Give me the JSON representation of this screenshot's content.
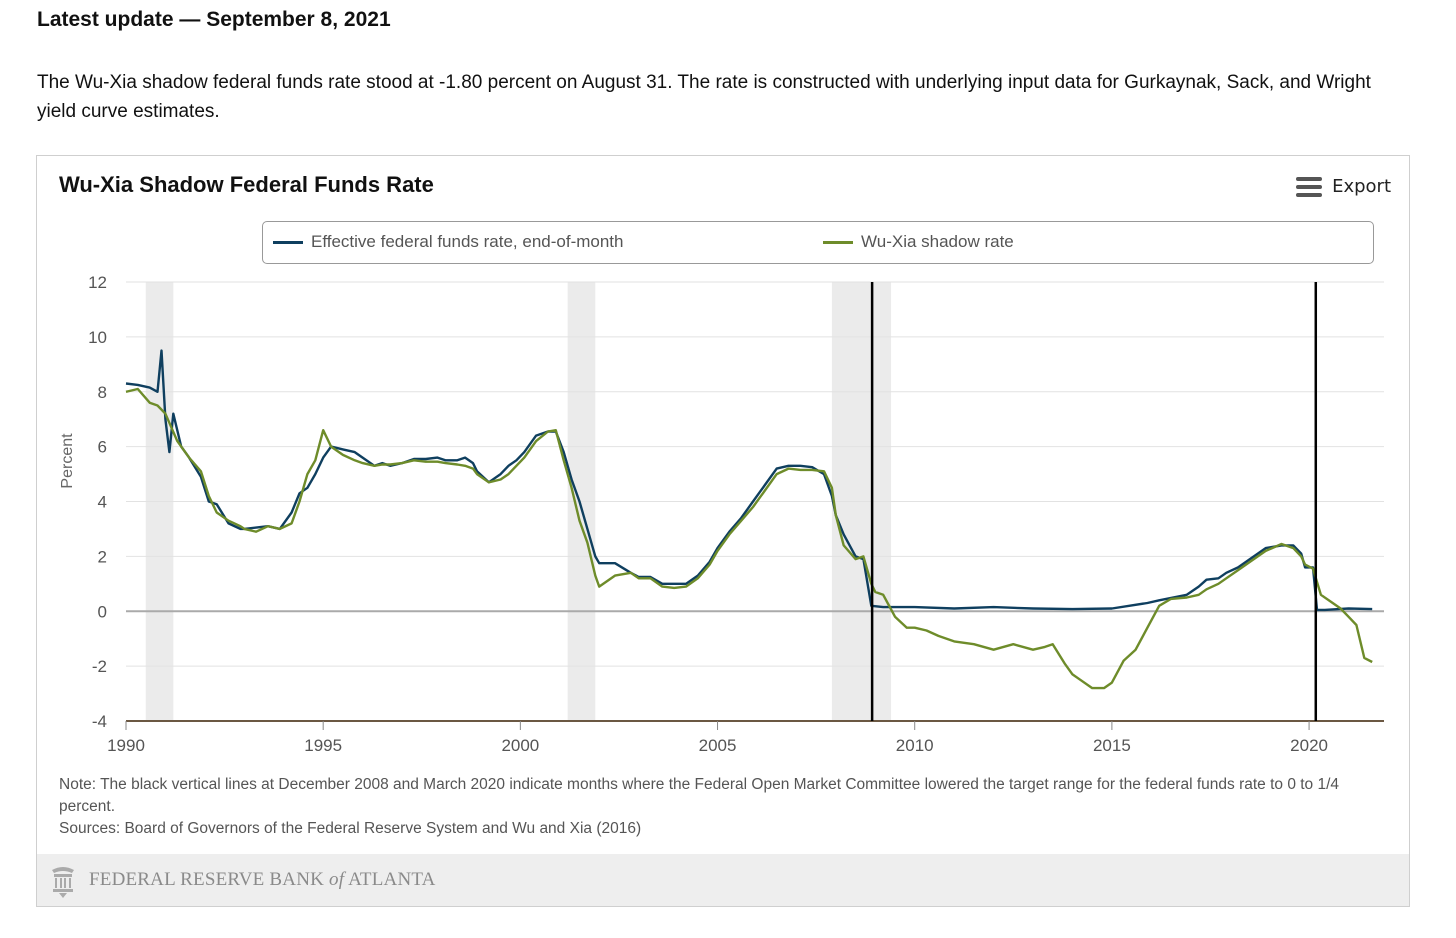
{
  "page": {
    "headline": "Latest update — September 8, 2021",
    "intro": "The Wu-Xia shadow federal funds rate stood at -1.80 percent on August 31. The rate is constructed with underlying input data for Gurkaynak, Sack, and Wright yield curve estimates."
  },
  "card": {
    "export_label": "Export",
    "note": "Note: The black vertical lines at December 2008 and March 2020 indicate months where the Federal Open Market Committee lowered the target range for the federal funds rate to 0 to 1/4 percent.",
    "sources": "Sources: Board of Governors of the Federal Reserve System and Wu and Xia (2016)",
    "footer_prefix": "FEDERAL RESERVE BANK ",
    "footer_of": "of",
    "footer_suffix": " ATLANTA",
    "icons": {
      "menu": "hamburger-menu-icon",
      "seal": "fed-seal-logo"
    }
  },
  "colors": {
    "effr": "#0f3f5f",
    "shadow": "#6e8c2a",
    "recession": "#ebebeb",
    "fomc_line": "#000000",
    "axis": "#6b5843"
  },
  "chart_data": {
    "type": "line",
    "title": "Wu-Xia Shadow Federal Funds Rate",
    "ylabel": "Percent",
    "xlabel": "",
    "xlim": [
      1990,
      2021.9
    ],
    "ylim": [
      -4,
      12
    ],
    "x_ticks": [
      1990,
      1995,
      2000,
      2005,
      2010,
      2015,
      2020
    ],
    "y_ticks": [
      -4,
      -2,
      0,
      2,
      4,
      6,
      8,
      10,
      12
    ],
    "x_tick_labels": [
      "1990",
      "1995",
      "2000",
      "2005",
      "2010",
      "2015",
      "2020"
    ],
    "y_tick_labels": [
      "-4",
      "-2",
      "0",
      "2",
      "4",
      "6",
      "8",
      "10",
      "12"
    ],
    "grid": true,
    "legend": "top",
    "recession_bands": [
      [
        1990.5,
        1991.2
      ],
      [
        2001.2,
        2001.9
      ],
      [
        2007.9,
        2009.4
      ]
    ],
    "vertical_lines": [
      2008.92,
      2020.17
    ],
    "series": [
      {
        "name": "Effective federal funds rate, end-of-month",
        "x": [
          1990.0,
          1990.3,
          1990.6,
          1990.8,
          1990.9,
          1991.0,
          1991.1,
          1991.2,
          1991.4,
          1991.6,
          1991.9,
          1992.1,
          1992.3,
          1992.6,
          1992.9,
          1993.0,
          1993.3,
          1993.6,
          1993.9,
          1994.2,
          1994.4,
          1994.6,
          1994.8,
          1995.0,
          1995.2,
          1995.5,
          1995.8,
          1996.0,
          1996.3,
          1996.5,
          1996.7,
          1997.0,
          1997.3,
          1997.6,
          1997.9,
          1998.1,
          1998.4,
          1998.6,
          1998.8,
          1998.9,
          1999.2,
          1999.5,
          1999.7,
          1999.9,
          2000.1,
          2000.4,
          2000.7,
          2000.9,
          2001.1,
          2001.3,
          2001.5,
          2001.7,
          2001.9,
          2002.0,
          2002.4,
          2002.8,
          2003.0,
          2003.3,
          2003.6,
          2003.9,
          2004.2,
          2004.5,
          2004.8,
          2005.0,
          2005.3,
          2005.6,
          2005.9,
          2006.2,
          2006.5,
          2006.8,
          2007.1,
          2007.4,
          2007.7,
          2007.9,
          2008.0,
          2008.2,
          2008.5,
          2008.7,
          2008.9,
          2009.2,
          2009.5,
          2010.0,
          2011.0,
          2012.0,
          2013.0,
          2014.0,
          2015.0,
          2015.9,
          2016.2,
          2016.9,
          2017.2,
          2017.4,
          2017.7,
          2017.9,
          2018.2,
          2018.5,
          2018.7,
          2018.9,
          2019.3,
          2019.6,
          2019.8,
          2019.9,
          2020.1,
          2020.2,
          2020.4,
          2021.0,
          2021.6
        ],
        "values": [
          8.3,
          8.25,
          8.15,
          8.0,
          9.5,
          7.0,
          5.8,
          7.2,
          6.0,
          5.6,
          4.9,
          4.0,
          3.9,
          3.2,
          3.0,
          3.0,
          3.05,
          3.1,
          3.0,
          3.6,
          4.3,
          4.5,
          5.0,
          5.6,
          6.0,
          5.9,
          5.8,
          5.6,
          5.3,
          5.4,
          5.3,
          5.4,
          5.55,
          5.55,
          5.6,
          5.5,
          5.5,
          5.6,
          5.4,
          5.1,
          4.7,
          5.0,
          5.3,
          5.5,
          5.8,
          6.4,
          6.55,
          6.55,
          5.8,
          4.8,
          4.0,
          3.0,
          2.0,
          1.75,
          1.75,
          1.4,
          1.25,
          1.25,
          1.0,
          1.0,
          1.0,
          1.3,
          1.8,
          2.3,
          2.9,
          3.4,
          4.0,
          4.6,
          5.2,
          5.3,
          5.3,
          5.25,
          5.0,
          4.2,
          3.5,
          2.8,
          2.0,
          1.9,
          0.2,
          0.15,
          0.15,
          0.15,
          0.1,
          0.15,
          0.1,
          0.08,
          0.1,
          0.3,
          0.4,
          0.6,
          0.9,
          1.15,
          1.2,
          1.4,
          1.6,
          1.9,
          2.1,
          2.3,
          2.4,
          2.4,
          2.1,
          1.6,
          1.6,
          0.05,
          0.05,
          0.1,
          0.08
        ]
      },
      {
        "name": "Wu-Xia shadow rate",
        "x": [
          1990.0,
          1990.3,
          1990.6,
          1990.8,
          1991.0,
          1991.3,
          1991.6,
          1991.9,
          1992.1,
          1992.3,
          1992.6,
          1992.9,
          1993.0,
          1993.3,
          1993.6,
          1993.9,
          1994.2,
          1994.4,
          1994.6,
          1994.8,
          1995.0,
          1995.2,
          1995.5,
          1995.8,
          1996.0,
          1996.3,
          1996.5,
          1996.7,
          1997.0,
          1997.3,
          1997.6,
          1997.9,
          1998.1,
          1998.4,
          1998.6,
          1998.8,
          1998.9,
          1999.2,
          1999.5,
          1999.7,
          1999.9,
          2000.1,
          2000.4,
          2000.7,
          2000.9,
          2001.1,
          2001.3,
          2001.5,
          2001.7,
          2001.9,
          2002.0,
          2002.4,
          2002.8,
          2003.0,
          2003.3,
          2003.6,
          2003.9,
          2004.2,
          2004.5,
          2004.8,
          2005.0,
          2005.3,
          2005.6,
          2005.9,
          2006.2,
          2006.5,
          2006.8,
          2007.1,
          2007.4,
          2007.7,
          2007.9,
          2008.0,
          2008.2,
          2008.5,
          2008.7,
          2008.9,
          2009.0,
          2009.2,
          2009.5,
          2009.8,
          2010.0,
          2010.3,
          2010.6,
          2011.0,
          2011.5,
          2012.0,
          2012.5,
          2013.0,
          2013.3,
          2013.5,
          2013.8,
          2014.0,
          2014.2,
          2014.5,
          2014.8,
          2015.0,
          2015.3,
          2015.6,
          2015.9,
          2016.2,
          2016.5,
          2016.9,
          2017.2,
          2017.4,
          2017.7,
          2017.9,
          2018.2,
          2018.5,
          2018.7,
          2018.9,
          2019.3,
          2019.6,
          2019.8,
          2019.9,
          2020.1,
          2020.3,
          2020.6,
          2020.8,
          2021.0,
          2021.2,
          2021.4,
          2021.6
        ],
        "values": [
          8.0,
          8.1,
          7.6,
          7.5,
          7.2,
          6.2,
          5.6,
          5.1,
          4.2,
          3.6,
          3.3,
          3.1,
          3.0,
          2.9,
          3.1,
          3.0,
          3.2,
          4.0,
          5.0,
          5.5,
          6.6,
          6.0,
          5.7,
          5.5,
          5.4,
          5.3,
          5.35,
          5.35,
          5.4,
          5.5,
          5.45,
          5.45,
          5.4,
          5.35,
          5.3,
          5.2,
          5.0,
          4.7,
          4.8,
          5.0,
          5.3,
          5.6,
          6.2,
          6.55,
          6.6,
          5.5,
          4.5,
          3.3,
          2.5,
          1.3,
          0.9,
          1.3,
          1.4,
          1.2,
          1.2,
          0.9,
          0.85,
          0.9,
          1.2,
          1.7,
          2.2,
          2.8,
          3.3,
          3.8,
          4.4,
          5.0,
          5.2,
          5.15,
          5.15,
          5.1,
          4.5,
          3.5,
          2.4,
          1.9,
          2.0,
          1.0,
          0.7,
          0.6,
          -0.2,
          -0.6,
          -0.6,
          -0.7,
          -0.9,
          -1.1,
          -1.2,
          -1.4,
          -1.2,
          -1.4,
          -1.3,
          -1.2,
          -1.9,
          -2.3,
          -2.5,
          -2.8,
          -2.8,
          -2.6,
          -1.8,
          -1.4,
          -0.6,
          0.2,
          0.45,
          0.5,
          0.6,
          0.8,
          1.0,
          1.2,
          1.5,
          1.8,
          2.0,
          2.2,
          2.45,
          2.3,
          2.0,
          1.7,
          1.55,
          0.6,
          0.3,
          0.1,
          -0.2,
          -0.5,
          -1.7,
          -1.85
        ]
      }
    ]
  }
}
